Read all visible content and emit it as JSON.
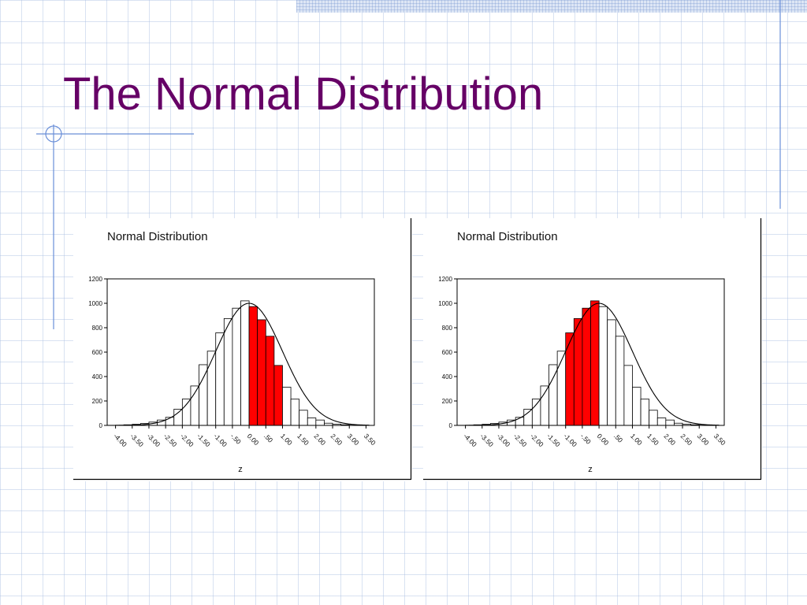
{
  "slide": {
    "title": "The Normal Distribution"
  },
  "colors": {
    "title": "#660066",
    "highlight": "#ff0000",
    "bar_fill": "#ffffff",
    "stroke": "#000000",
    "accent_line": "#6a8fd8"
  },
  "chart_data": [
    {
      "type": "bar",
      "title": "Normal Distribution",
      "xlabel": "z",
      "ylabel": "",
      "ylim": [
        0,
        1200
      ],
      "yticks": [
        "1200",
        "1000",
        "800",
        "600",
        "400",
        "200",
        "0"
      ],
      "xticks": [
        "-4.00",
        "-3.50",
        "-3.00",
        "-2.50",
        "-2.00",
        "-1.50",
        "-1.00",
        "-.50",
        "0.00",
        ".50",
        "1.00",
        "1.50",
        "2.00",
        "2.50",
        "3.00",
        "3.50"
      ],
      "bin_edges": [
        -4.25,
        3.75
      ],
      "bin_width": 0.25,
      "values": [
        1,
        2,
        5,
        9,
        16,
        27,
        44,
        66,
        133,
        216,
        323,
        497,
        608,
        758,
        875,
        960,
        1020,
        973,
        865,
        730,
        491,
        313,
        215,
        124,
        61,
        44,
        18,
        10,
        5,
        2,
        1,
        0
      ],
      "highlight_range": [
        0.0,
        1.0
      ],
      "grid": false,
      "curve": "normal"
    },
    {
      "type": "bar",
      "title": "Normal Distribution",
      "xlabel": "z",
      "ylabel": "",
      "ylim": [
        0,
        1200
      ],
      "yticks": [
        "1200",
        "1000",
        "800",
        "600",
        "400",
        "200",
        "0"
      ],
      "xticks": [
        "-4.00",
        "-3.50",
        "-3.00",
        "-2.50",
        "-2.00",
        "-1.50",
        "-1.00",
        "-.50",
        "0.00",
        ".50",
        "1.00",
        "1.50",
        "2.00",
        "2.50",
        "3.00",
        "3.50"
      ],
      "bin_edges": [
        -4.25,
        3.75
      ],
      "bin_width": 0.25,
      "values": [
        1,
        2,
        5,
        9,
        16,
        27,
        44,
        66,
        133,
        216,
        323,
        497,
        608,
        758,
        875,
        960,
        1020,
        973,
        865,
        730,
        491,
        313,
        215,
        124,
        61,
        44,
        18,
        10,
        5,
        2,
        1,
        0
      ],
      "highlight_range": [
        -1.0,
        0.0
      ],
      "grid": false,
      "curve": "normal"
    }
  ]
}
